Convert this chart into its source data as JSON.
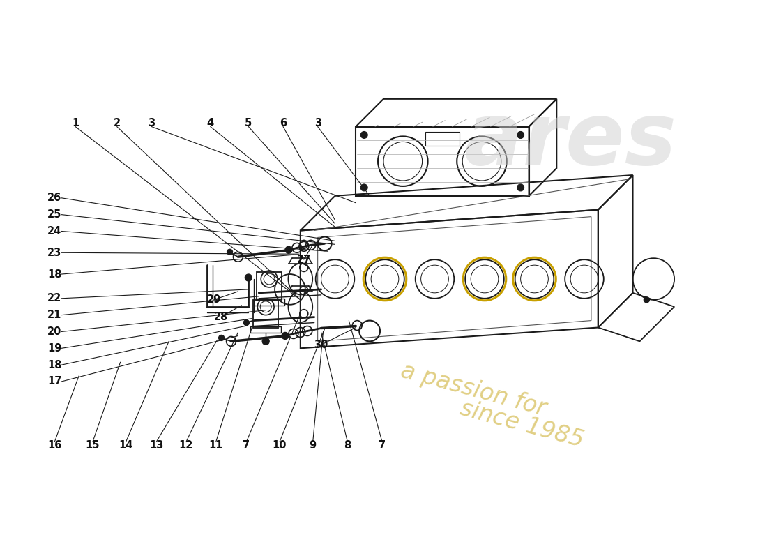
{
  "bg_color": "#ffffff",
  "line_color": "#1a1a1a",
  "label_color": "#111111",
  "lw": 1.0,
  "fs": 10.5,
  "watermark_text1": "ares",
  "watermark_text2": "a passion for",
  "watermark_text3": "since 1985",
  "wm_color1": "#cccccc",
  "wm_color2": "#c8a820"
}
